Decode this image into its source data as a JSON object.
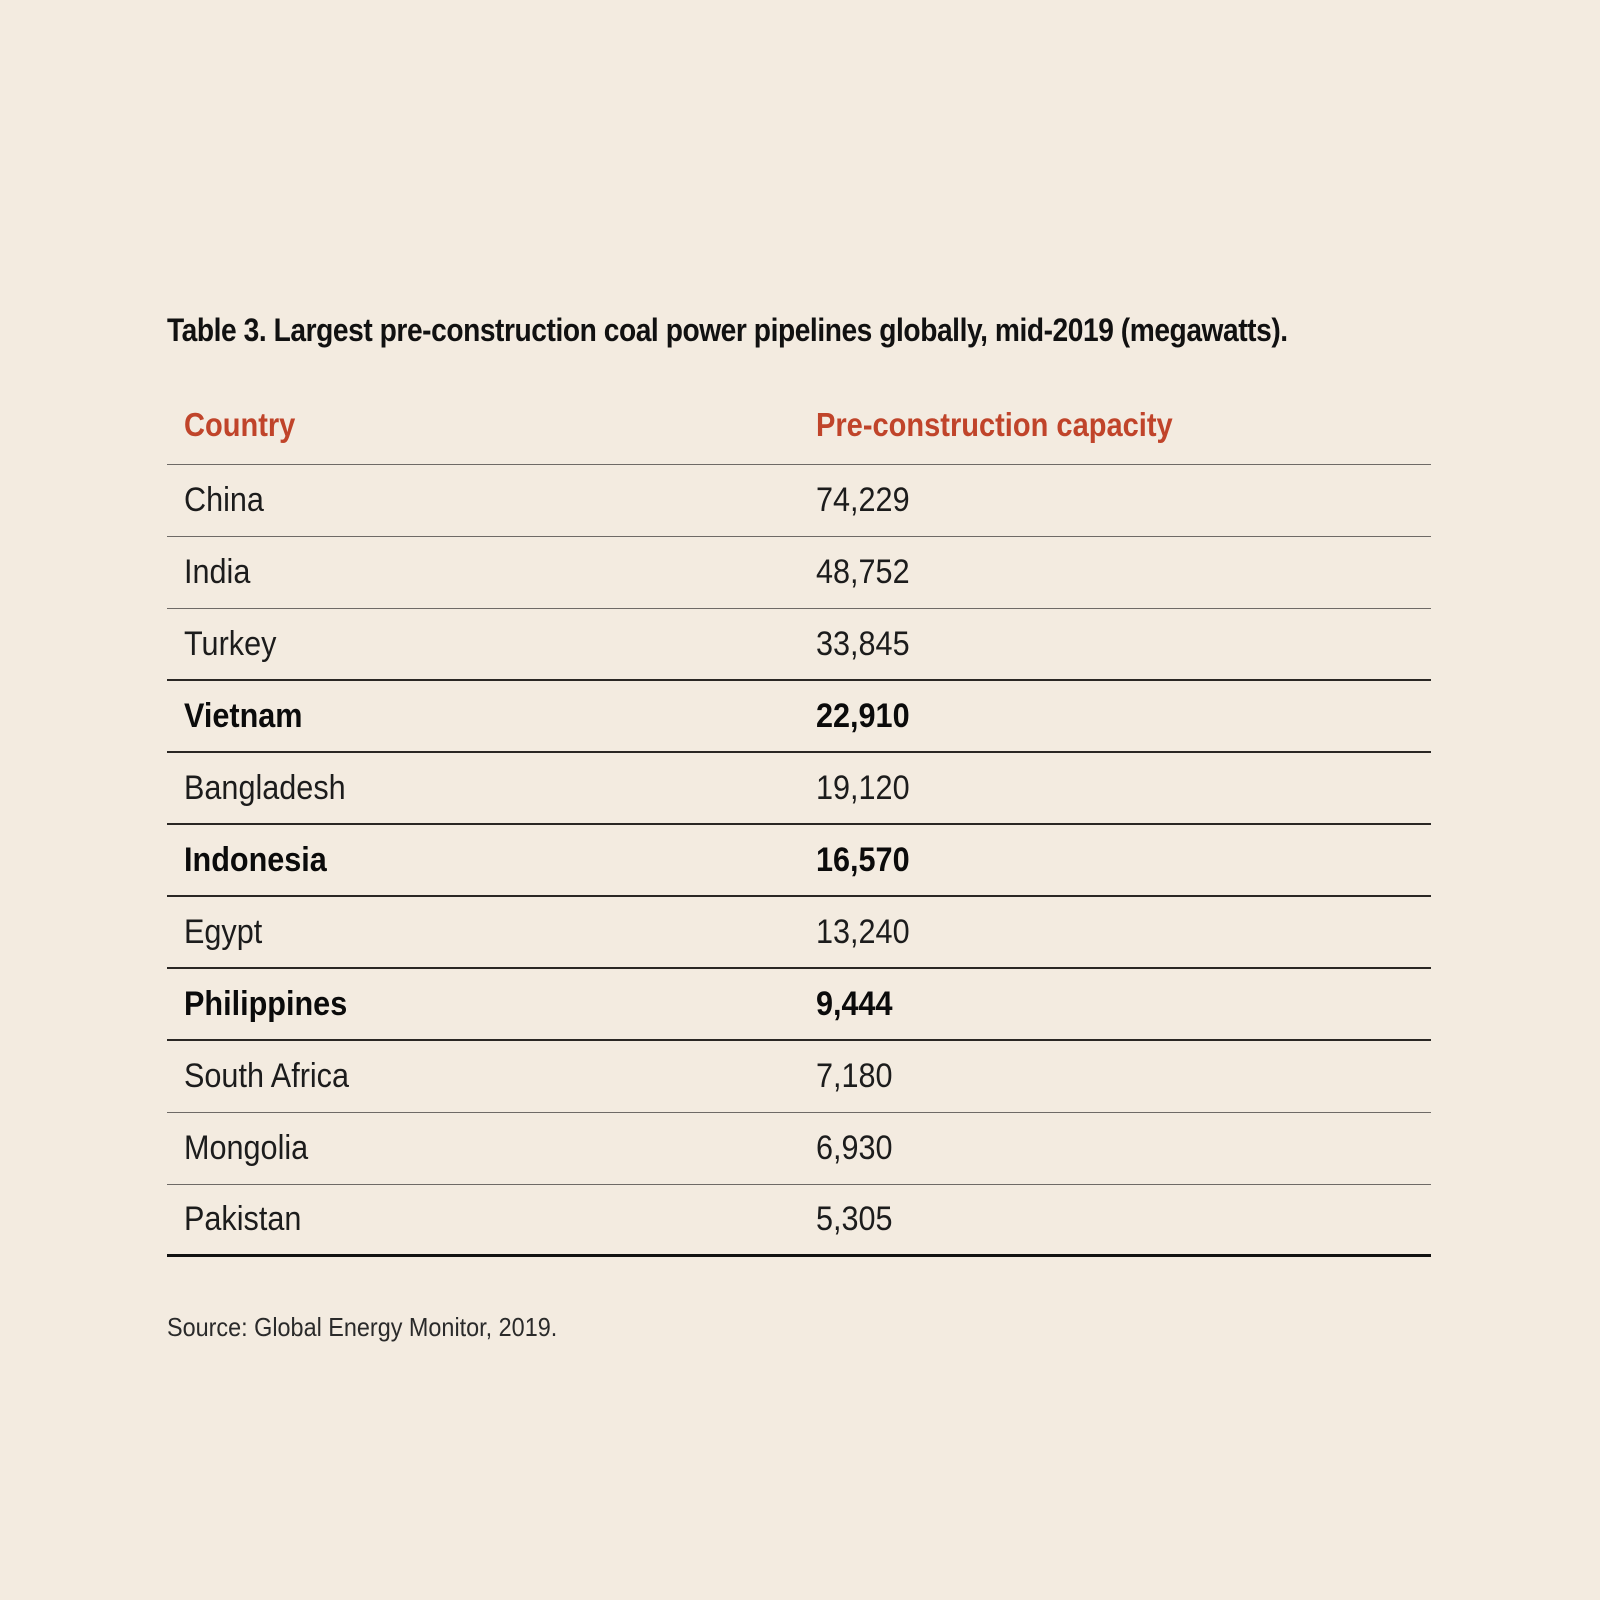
{
  "title": "Table 3. Largest pre-construction coal power pipelines globally, mid-2019 (megawatts).",
  "source": "Source: Global Energy Monitor, 2019.",
  "colors": {
    "background": "#f3ebe0",
    "header_text": "#c0442a",
    "body_text": "#111111"
  },
  "chart_data": {
    "type": "table",
    "title": "Table 3. Largest pre-construction coal power pipelines globally, mid-2019 (megawatts).",
    "columns": [
      "Country",
      "Pre-construction capacity"
    ],
    "rows": [
      {
        "country": "China",
        "capacity": "74,229",
        "bold": false
      },
      {
        "country": "India",
        "capacity": "48,752",
        "bold": false
      },
      {
        "country": "Turkey",
        "capacity": "33,845",
        "bold": false
      },
      {
        "country": "Vietnam",
        "capacity": "22,910",
        "bold": true
      },
      {
        "country": "Bangladesh",
        "capacity": "19,120",
        "bold": false
      },
      {
        "country": "Indonesia",
        "capacity": "16,570",
        "bold": true
      },
      {
        "country": "Egypt",
        "capacity": "13,240",
        "bold": false
      },
      {
        "country": "Philippines",
        "capacity": "9,444",
        "bold": true
      },
      {
        "country": "South Africa",
        "capacity": "7,180",
        "bold": false
      },
      {
        "country": "Mongolia",
        "capacity": "6,930",
        "bold": false
      },
      {
        "country": "Pakistan",
        "capacity": "5,305",
        "bold": false
      }
    ],
    "values": [
      74229,
      48752,
      33845,
      22910,
      19120,
      16570,
      13240,
      9444,
      7180,
      6930,
      5305
    ],
    "source": "Source: Global Energy Monitor, 2019."
  }
}
